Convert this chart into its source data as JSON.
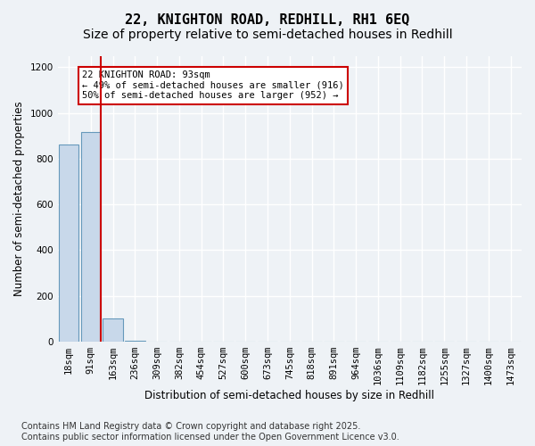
{
  "title_line1": "22, KNIGHTON ROAD, REDHILL, RH1 6EQ",
  "title_line2": "Size of property relative to semi-detached houses in Redhill",
  "xlabel": "Distribution of semi-detached houses by size in Redhill",
  "ylabel": "Number of semi-detached properties",
  "annotation_line1": "22 KNIGHTON ROAD: 93sqm",
  "annotation_line2": "← 49% of semi-detached houses are smaller (916)",
  "annotation_line3": "50% of semi-detached houses are larger (952) →",
  "footer_line1": "Contains HM Land Registry data © Crown copyright and database right 2025.",
  "footer_line2": "Contains public sector information licensed under the Open Government Licence v3.0.",
  "bins": [
    "18sqm",
    "91sqm",
    "163sqm",
    "236sqm",
    "309sqm",
    "382sqm",
    "454sqm",
    "527sqm",
    "600sqm",
    "673sqm",
    "745sqm",
    "818sqm",
    "891sqm",
    "964sqm",
    "1036sqm",
    "1109sqm",
    "1182sqm",
    "1255sqm",
    "1327sqm",
    "1400sqm",
    "1473sqm"
  ],
  "values": [
    860,
    916,
    100,
    2,
    0,
    0,
    0,
    0,
    0,
    0,
    0,
    0,
    0,
    0,
    0,
    0,
    0,
    0,
    0,
    0,
    0
  ],
  "bar_color": "#c8d8ea",
  "bar_edge_color": "#6699bb",
  "red_line_color": "#cc0000",
  "annotation_box_edge_color": "#cc0000",
  "ylim_min": 0,
  "ylim_max": 1250,
  "yticks": [
    0,
    200,
    400,
    600,
    800,
    1000,
    1200
  ],
  "background_color": "#eef2f6",
  "plot_background_color": "#eef2f6",
  "grid_color": "#ffffff",
  "title_fontsize": 11,
  "subtitle_fontsize": 10,
  "axis_label_fontsize": 8.5,
  "tick_fontsize": 7.5,
  "footer_fontsize": 7,
  "red_line_x": 1.45
}
